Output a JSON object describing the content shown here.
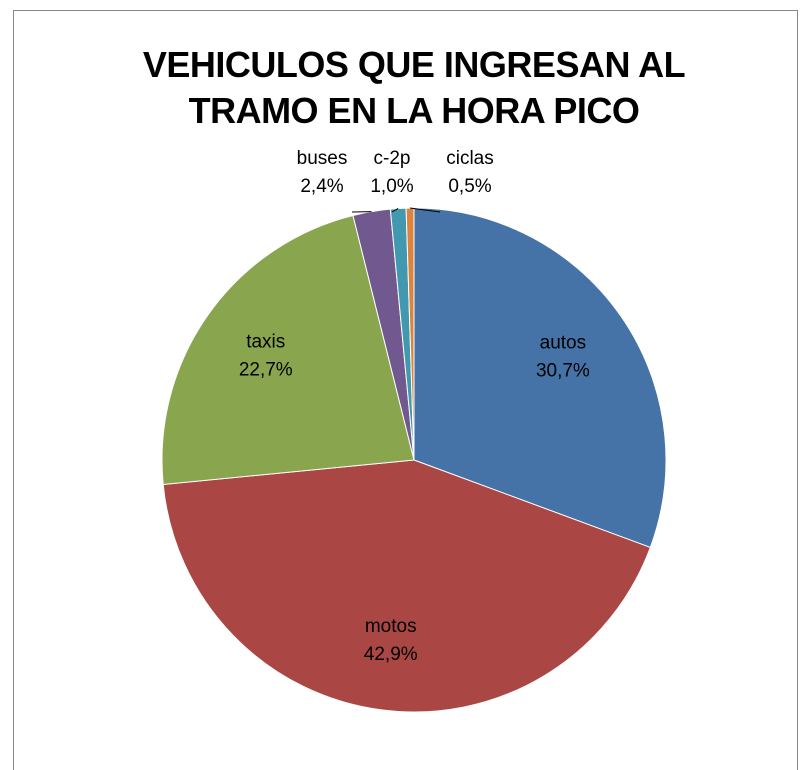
{
  "chart_data": {
    "type": "pie",
    "title": "VEHICULOS QUE INGRESAN AL TRAMO EN LA HORA PICO",
    "categories": [
      "autos",
      "motos",
      "taxis",
      "buses",
      "c-2p",
      "ciclas"
    ],
    "values": [
      30.7,
      42.9,
      22.7,
      2.4,
      1.0,
      0.5
    ],
    "value_labels": [
      "30,7%",
      "42,9%",
      "22,7%",
      "2,4%",
      "1,0%",
      "0,5%"
    ],
    "colors": [
      "#4572a7",
      "#aa4643",
      "#89a54e",
      "#71588f",
      "#4198af",
      "#db843d"
    ]
  }
}
